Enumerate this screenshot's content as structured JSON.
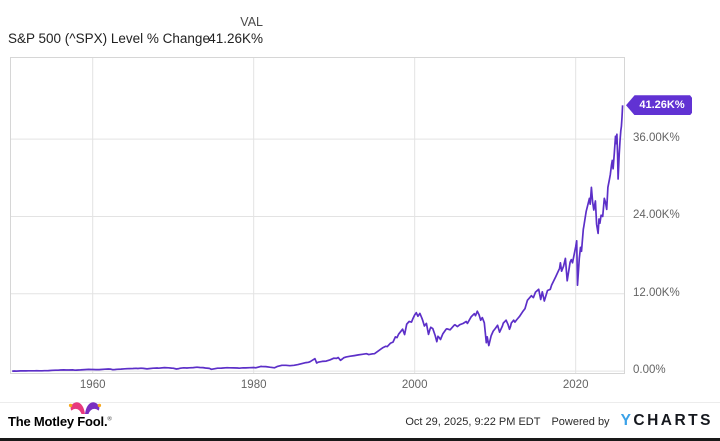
{
  "header": {
    "val_label": "VAL",
    "title": "S&P 500 (^SPX) Level % Change",
    "value": "41.26K%"
  },
  "badge": {
    "text": "41.26K%",
    "color": "#6132d3"
  },
  "colors": {
    "line": "#5c2fc8",
    "badge": "#6132d3",
    "gridline": "#e3e3e3",
    "plot_border": "#d6d6d6",
    "ycharts_y_blue": "#3ba2e8",
    "ycharts_charts": "#15181e",
    "fool_cap_left_pink": "#e7397d",
    "fool_cap_right_purple": "#7a2ec1",
    "fool_bell_orange": "#f7a81b",
    "bottom_bar": "#191919"
  },
  "chart_data": {
    "type": "line",
    "title": "S&P 500 (^SPX) Level % Change",
    "series_name": "S&P 500 (^SPX) Level % Change",
    "latest_value_label": "41.26K%",
    "latest_value_pct": 41256,
    "xlim": [
      1949.85,
      2026.0
    ],
    "ylim": [
      -300,
      48600
    ],
    "grid": true,
    "legend_position": "none",
    "line_color": "#5c2fc8",
    "x_ticks": [
      {
        "value": 1960,
        "label": "1960"
      },
      {
        "value": 1980,
        "label": "1980"
      },
      {
        "value": 2000,
        "label": "2000"
      },
      {
        "value": 2020,
        "label": "2020"
      }
    ],
    "y_ticks": [
      {
        "value": 0,
        "label": "0.00%"
      },
      {
        "value": 12000,
        "label": "12.00K%"
      },
      {
        "value": 24000,
        "label": "24.00K%"
      },
      {
        "value": 36000,
        "label": "36.00K%"
      }
    ],
    "series_points": [
      [
        1950.0,
        0
      ],
      [
        1950.3,
        6
      ],
      [
        1950.5,
        2
      ],
      [
        1950.8,
        18
      ],
      [
        1951.0,
        26
      ],
      [
        1951.4,
        34
      ],
      [
        1951.7,
        30
      ],
      [
        1952.0,
        41
      ],
      [
        1952.5,
        47
      ],
      [
        1952.8,
        44
      ],
      [
        1953.0,
        56
      ],
      [
        1953.4,
        48
      ],
      [
        1953.7,
        44
      ],
      [
        1954.0,
        56
      ],
      [
        1954.5,
        75
      ],
      [
        1955.0,
        116
      ],
      [
        1955.4,
        134
      ],
      [
        1955.7,
        128
      ],
      [
        1956.0,
        162
      ],
      [
        1956.4,
        180
      ],
      [
        1956.7,
        170
      ],
      [
        1957.0,
        167
      ],
      [
        1957.5,
        183
      ],
      [
        1957.8,
        134
      ],
      [
        1958.0,
        146
      ],
      [
        1958.5,
        176
      ],
      [
        1959.0,
        234
      ],
      [
        1959.5,
        255
      ],
      [
        1959.8,
        248
      ],
      [
        1960.0,
        244
      ],
      [
        1960.4,
        222
      ],
      [
        1960.8,
        232
      ],
      [
        1961.0,
        249
      ],
      [
        1961.5,
        286
      ],
      [
        1961.95,
        318
      ],
      [
        1962.2,
        300
      ],
      [
        1962.5,
        212
      ],
      [
        1962.8,
        250
      ],
      [
        1963.0,
        278
      ],
      [
        1963.5,
        308
      ],
      [
        1964.0,
        353
      ],
      [
        1964.5,
        380
      ],
      [
        1965.0,
        406
      ],
      [
        1965.4,
        430
      ],
      [
        1965.6,
        406
      ],
      [
        1966.0,
        440
      ],
      [
        1966.3,
        420
      ],
      [
        1966.75,
        338
      ],
      [
        1967.0,
        382
      ],
      [
        1967.5,
        444
      ],
      [
        1967.8,
        460
      ],
      [
        1968.0,
        470
      ],
      [
        1968.2,
        450
      ],
      [
        1968.9,
        534
      ],
      [
        1969.4,
        500
      ],
      [
        1969.8,
        466
      ],
      [
        1970.0,
        452
      ],
      [
        1970.4,
        314
      ],
      [
        1970.7,
        380
      ],
      [
        1970.9,
        440
      ],
      [
        1971.3,
        504
      ],
      [
        1971.7,
        470
      ],
      [
        1972.0,
        500
      ],
      [
        1972.5,
        540
      ],
      [
        1972.95,
        608
      ],
      [
        1973.3,
        560
      ],
      [
        1973.7,
        540
      ],
      [
        1974.0,
        482
      ],
      [
        1974.5,
        410
      ],
      [
        1974.75,
        272
      ],
      [
        1975.0,
        330
      ],
      [
        1975.5,
        448
      ],
      [
        1976.0,
        460
      ],
      [
        1976.7,
        530
      ],
      [
        1977.0,
        515
      ],
      [
        1977.5,
        490
      ],
      [
        1978.0,
        482
      ],
      [
        1978.2,
        440
      ],
      [
        1978.7,
        500
      ],
      [
        1979.0,
        490
      ],
      [
        1979.5,
        520
      ],
      [
        1979.8,
        540
      ],
      [
        1980.0,
        548
      ],
      [
        1980.25,
        512
      ],
      [
        1980.9,
        720
      ],
      [
        1981.0,
        704
      ],
      [
        1981.5,
        690
      ],
      [
        1982.0,
        608
      ],
      [
        1982.6,
        512
      ],
      [
        1982.9,
        690
      ],
      [
        1983.0,
        740
      ],
      [
        1983.5,
        900
      ],
      [
        1984.0,
        890
      ],
      [
        1984.5,
        840
      ],
      [
        1985.0,
        900
      ],
      [
        1985.5,
        1010
      ],
      [
        1986.0,
        1160
      ],
      [
        1986.5,
        1320
      ],
      [
        1986.8,
        1360
      ],
      [
        1987.0,
        1450
      ],
      [
        1987.6,
        1917
      ],
      [
        1987.82,
        1251
      ],
      [
        1988.0,
        1383
      ],
      [
        1988.5,
        1500
      ],
      [
        1989.0,
        1551
      ],
      [
        1989.5,
        1750
      ],
      [
        1989.95,
        2001
      ],
      [
        1990.3,
        1960
      ],
      [
        1990.5,
        2100
      ],
      [
        1990.78,
        1671
      ],
      [
        1991.0,
        1881
      ],
      [
        1991.2,
        2080
      ],
      [
        1991.5,
        2200
      ],
      [
        1992.0,
        2301
      ],
      [
        1992.5,
        2400
      ],
      [
        1993.0,
        2511
      ],
      [
        1993.5,
        2600
      ],
      [
        1994.0,
        2691
      ],
      [
        1994.3,
        2560
      ],
      [
        1994.7,
        2661
      ],
      [
        1995.0,
        2700
      ],
      [
        1995.5,
        3150
      ],
      [
        1996.0,
        3592
      ],
      [
        1996.4,
        3850
      ],
      [
        1996.6,
        3800
      ],
      [
        1997.0,
        4342
      ],
      [
        1997.3,
        4500
      ],
      [
        1997.6,
        5300
      ],
      [
        1997.8,
        5200
      ],
      [
        1998.0,
        5723
      ],
      [
        1998.5,
        6503
      ],
      [
        1998.75,
        5662
      ],
      [
        1999.0,
        7277
      ],
      [
        1999.3,
        7700
      ],
      [
        1999.6,
        7600
      ],
      [
        1999.8,
        8200
      ],
      [
        2000.0,
        8718
      ],
      [
        2000.2,
        9066
      ],
      [
        2000.4,
        8500
      ],
      [
        2000.65,
        8950
      ],
      [
        2000.9,
        8200
      ],
      [
        2001.0,
        7823
      ],
      [
        2001.2,
        7000
      ],
      [
        2001.45,
        7400
      ],
      [
        2001.72,
        5692
      ],
      [
        2001.9,
        6500
      ],
      [
        2002.0,
        6791
      ],
      [
        2002.25,
        6600
      ],
      [
        2002.55,
        5500
      ],
      [
        2002.75,
        4558
      ],
      [
        2002.9,
        5400
      ],
      [
        2003.05,
        5182
      ],
      [
        2003.2,
        4900
      ],
      [
        2003.5,
        5800
      ],
      [
        2003.9,
        6500
      ],
      [
        2004.0,
        6563
      ],
      [
        2004.4,
        6400
      ],
      [
        2004.9,
        7100
      ],
      [
        2005.0,
        7175
      ],
      [
        2005.3,
        6900
      ],
      [
        2005.6,
        7200
      ],
      [
        2006.0,
        7391
      ],
      [
        2006.4,
        7700
      ],
      [
        2006.55,
        7400
      ],
      [
        2007.0,
        8412
      ],
      [
        2007.4,
        8900
      ],
      [
        2007.55,
        8600
      ],
      [
        2007.78,
        9294
      ],
      [
        2008.0,
        8712
      ],
      [
        2008.2,
        7900
      ],
      [
        2008.4,
        8300
      ],
      [
        2008.65,
        7500
      ],
      [
        2008.9,
        4402
      ],
      [
        2009.0,
        5320
      ],
      [
        2009.2,
        3958
      ],
      [
        2009.5,
        5500
      ],
      [
        2009.75,
        6200
      ],
      [
        2010.0,
        6593
      ],
      [
        2010.3,
        7100
      ],
      [
        2010.55,
        6035
      ],
      [
        2010.9,
        7000
      ],
      [
        2011.0,
        7445
      ],
      [
        2011.35,
        7900
      ],
      [
        2011.6,
        7200
      ],
      [
        2011.78,
        6497
      ],
      [
        2011.9,
        6900
      ],
      [
        2012.0,
        7445
      ],
      [
        2012.3,
        7900
      ],
      [
        2012.45,
        7600
      ],
      [
        2012.7,
        8000
      ],
      [
        2013.0,
        8460
      ],
      [
        2013.4,
        9200
      ],
      [
        2013.7,
        9700
      ],
      [
        2014.0,
        10993
      ],
      [
        2014.5,
        11700
      ],
      [
        2014.75,
        11400
      ],
      [
        2015.0,
        12259
      ],
      [
        2015.4,
        12686
      ],
      [
        2015.65,
        11107
      ],
      [
        2015.85,
        12300
      ],
      [
        2016.1,
        10879
      ],
      [
        2016.5,
        12500
      ],
      [
        2016.85,
        12700
      ],
      [
        2017.0,
        13339
      ],
      [
        2017.5,
        14600
      ],
      [
        2018.0,
        15950
      ],
      [
        2018.1,
        16800
      ],
      [
        2018.25,
        15500
      ],
      [
        2018.5,
        16300
      ],
      [
        2018.72,
        17487
      ],
      [
        2018.95,
        14012
      ],
      [
        2019.3,
        16900
      ],
      [
        2019.45,
        17300
      ],
      [
        2019.6,
        16800
      ],
      [
        2020.0,
        19294
      ],
      [
        2020.12,
        20224
      ],
      [
        2020.22,
        13327
      ],
      [
        2020.45,
        17500
      ],
      [
        2020.6,
        19200
      ],
      [
        2020.72,
        18600
      ],
      [
        2020.95,
        22000
      ],
      [
        2021.0,
        22445
      ],
      [
        2021.3,
        24800
      ],
      [
        2021.5,
        25800
      ],
      [
        2021.7,
        26800
      ],
      [
        2021.8,
        25900
      ],
      [
        2021.95,
        28507
      ],
      [
        2022.1,
        26300
      ],
      [
        2022.25,
        25000
      ],
      [
        2022.45,
        26400
      ],
      [
        2022.6,
        22800
      ],
      [
        2022.78,
        21371
      ],
      [
        2022.9,
        23600
      ],
      [
        2023.0,
        22950
      ],
      [
        2023.15,
        24200
      ],
      [
        2023.35,
        24000
      ],
      [
        2023.55,
        26800
      ],
      [
        2023.7,
        26200
      ],
      [
        2023.85,
        25100
      ],
      [
        2024.0,
        28531
      ],
      [
        2024.2,
        29800
      ],
      [
        2024.3,
        30500
      ],
      [
        2024.45,
        32000
      ],
      [
        2024.55,
        32700
      ],
      [
        2024.65,
        31400
      ],
      [
        2024.8,
        33800
      ],
      [
        2024.95,
        36453
      ],
      [
        2025.05,
        35300
      ],
      [
        2025.12,
        36777
      ],
      [
        2025.2,
        33500
      ],
      [
        2025.27,
        29809
      ],
      [
        2025.4,
        33600
      ],
      [
        2025.5,
        35700
      ],
      [
        2025.6,
        37300
      ],
      [
        2025.68,
        38000
      ],
      [
        2025.75,
        39400
      ],
      [
        2025.79,
        40300
      ],
      [
        2025.83,
        41256
      ]
    ]
  },
  "footer": {
    "brand_text": "The Motley Fool.",
    "registered_mark": "®",
    "timestamp": "Oct 29, 2025, 9:22 PM EDT",
    "powered_by": "Powered by",
    "ycharts_y": "Y",
    "ycharts_rest": "CHARTS"
  }
}
